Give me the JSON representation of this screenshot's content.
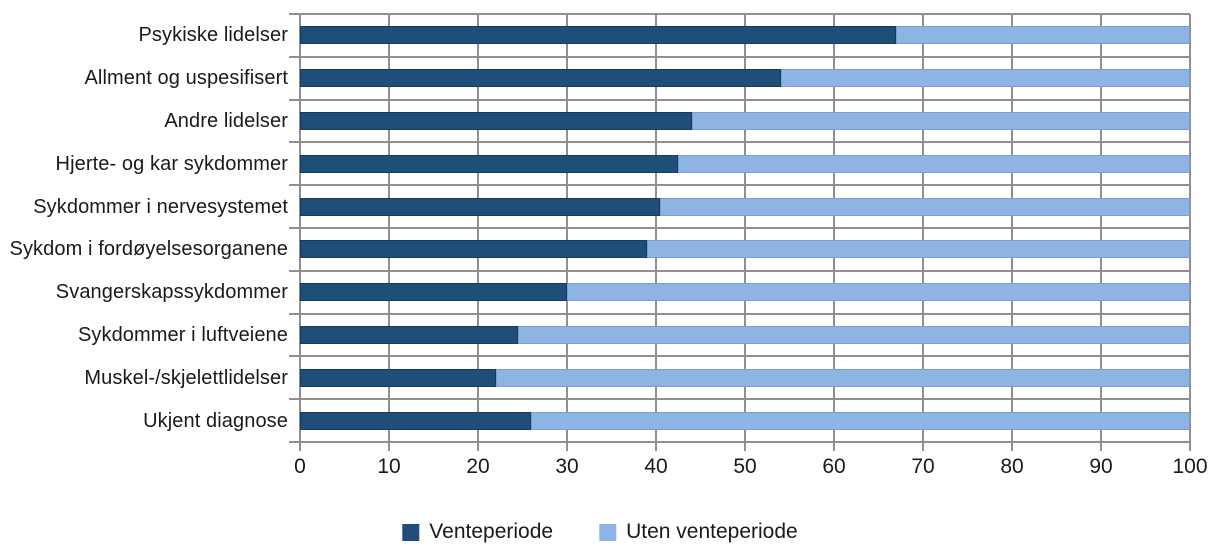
{
  "chart_data": {
    "type": "bar",
    "orientation": "horizontal",
    "stacked": true,
    "title": "",
    "xlabel": "",
    "ylabel": "",
    "xlim": [
      0,
      100
    ],
    "x_ticks": [
      0,
      10,
      20,
      30,
      40,
      50,
      60,
      70,
      80,
      90,
      100
    ],
    "grid": true,
    "legend_position": "bottom",
    "categories": [
      "Psykiske lidelser",
      "Allment og uspesifisert",
      "Andre lidelser",
      "Hjerte- og kar sykdommer",
      "Sykdommer i nervesystemet",
      "Sykdom i fordøyelsesorganene",
      "Svangerskapssykdommer",
      "Sykdommer i luftveiene",
      "Muskel-/skjelettlidelser",
      "Ukjent diagnose"
    ],
    "series": [
      {
        "name": "Venteperiode",
        "color": "#1F4E79",
        "values": [
          67,
          54,
          44,
          42.5,
          40.5,
          39,
          30,
          24.5,
          22,
          26
        ]
      },
      {
        "name": "Uten venteperiode",
        "color": "#8DB4E2",
        "values": [
          33,
          46,
          56,
          57.5,
          59.5,
          61,
          70,
          75.5,
          78,
          74
        ]
      }
    ]
  },
  "legend": {
    "items": [
      {
        "label": "Venteperiode",
        "color": "#1F4E79"
      },
      {
        "label": "Uten venteperiode",
        "color": "#8DB4E2"
      }
    ]
  },
  "colors": {
    "grid": "#8f8f8f",
    "text": "#1a1a1a",
    "background": "#ffffff"
  }
}
